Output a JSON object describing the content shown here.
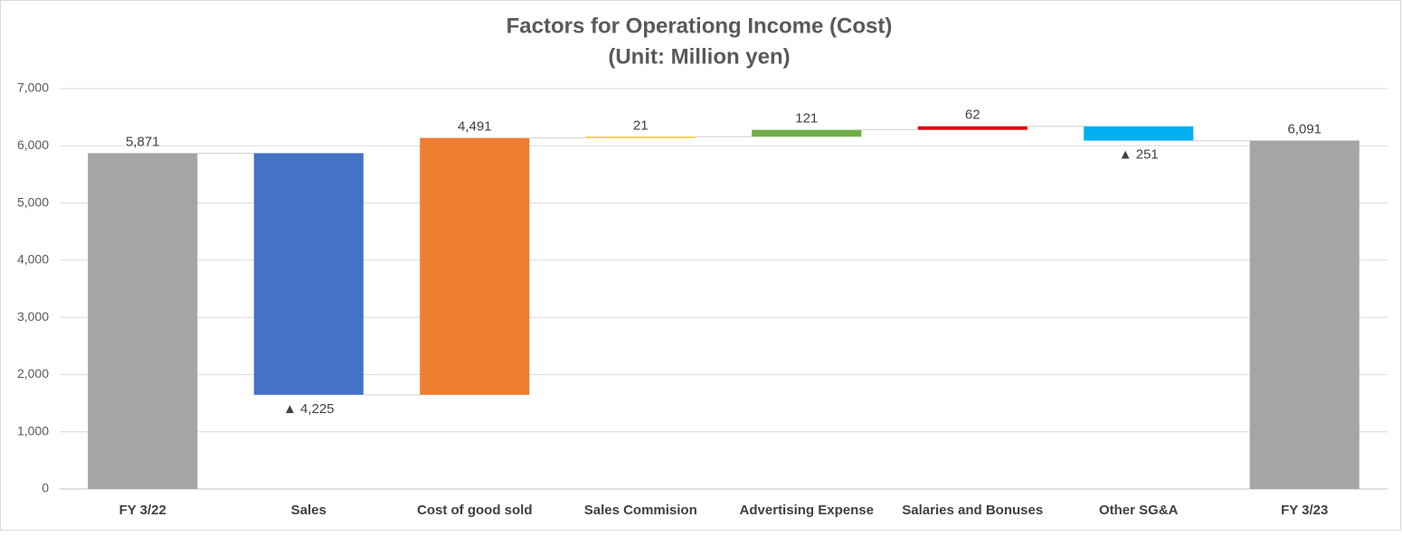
{
  "chart_data": {
    "type": "waterfall",
    "title": "Factors for Operationg Income (Cost)",
    "subtitle": "(Unit: Million yen)",
    "categories": [
      "FY 3/22",
      "Sales",
      "Cost of good sold",
      "Sales Commision",
      "Advertising Expense",
      "Salaries and Bonuses",
      "Other SG&A",
      "FY 3/23"
    ],
    "values": [
      5871,
      -4225,
      4491,
      21,
      121,
      62,
      -251,
      6091
    ],
    "value_labels": [
      "5,871",
      "▲ 4,225",
      "4,491",
      "21",
      "121",
      "62",
      "▲ 251",
      "6,091"
    ],
    "measure": [
      "absolute",
      "relative",
      "relative",
      "relative",
      "relative",
      "relative",
      "relative",
      "absolute"
    ],
    "colors": [
      "#a5a5a5",
      "#4472c4",
      "#ed7d31",
      "#ffc000",
      "#70ad47",
      "#e00000",
      "#00b0f0",
      "#a5a5a5"
    ],
    "ylim": [
      0,
      7000
    ],
    "yticks": [
      0,
      {
        "value": 1000,
        "label": "1,000"
      },
      {
        "value": 2000,
        "label": "2,000"
      },
      {
        "value": 3000,
        "label": "3,000"
      },
      {
        "value": 4000,
        "label": "4,000"
      },
      {
        "value": 5000,
        "label": "5,000"
      },
      {
        "value": 6000,
        "label": "6,000"
      },
      {
        "value": 7000,
        "label": "7,000"
      }
    ],
    "grid": true
  }
}
